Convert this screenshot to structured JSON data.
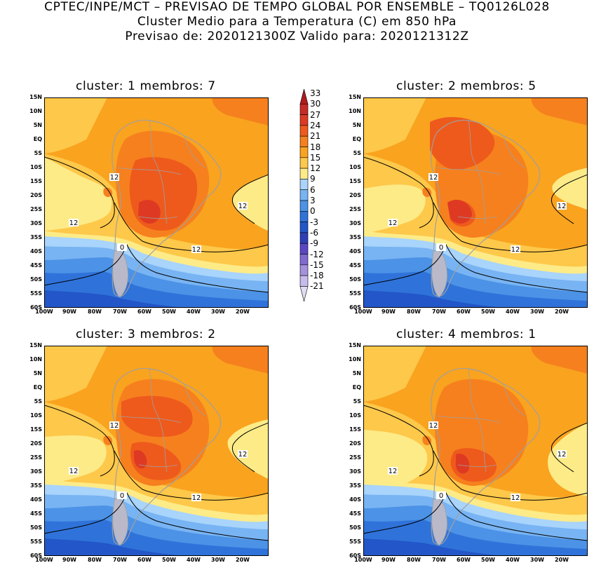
{
  "header": {
    "line1": "CPTEC/INPE/MCT – PREVISAO DE TEMPO GLOBAL POR ENSEMBLE – TQ0126L028",
    "line2": "Cluster Medio para a Temperatura (C) em 850 hPa",
    "line3": "Previsao de: 2020121300Z   Valido para: 2020121312Z"
  },
  "panels": [
    {
      "title": "cluster: 1   membros: 7"
    },
    {
      "title": "cluster: 2   membros: 5"
    },
    {
      "title": "cluster: 3   membros: 2"
    },
    {
      "title": "cluster: 4   membros: 1"
    }
  ],
  "lat_labels": [
    "15N",
    "10N",
    "5N",
    "EQ",
    "5S",
    "10S",
    "15S",
    "20S",
    "25S",
    "30S",
    "35S",
    "40S",
    "45S",
    "50S",
    "55S",
    "60S"
  ],
  "lon_labels": [
    "100W",
    "90W",
    "80W",
    "70W",
    "60W",
    "50W",
    "40W",
    "30W",
    "20W"
  ],
  "contour_labels": {
    "twelve": "12",
    "zero": "0"
  },
  "colorbar": {
    "levels": [
      "33",
      "30",
      "27",
      "24",
      "21",
      "18",
      "15",
      "12",
      "9",
      "6",
      "3",
      "0",
      "-3",
      "-6",
      "-9",
      "-12",
      "-15",
      "-18",
      "-21"
    ],
    "colors": [
      "#b01c1c",
      "#c82a28",
      "#de3a23",
      "#ee5a1c",
      "#f6801e",
      "#f9a31f",
      "#fec84a",
      "#fdeb88",
      "#a9d4fb",
      "#78b4f3",
      "#4c92e6",
      "#2f73da",
      "#2356c8",
      "#2f3fb8",
      "#5a48c2",
      "#7f6ad0",
      "#a592dd",
      "#c6bbea",
      "#e1dcf4"
    ]
  },
  "palette": {
    "t_le_m3": "#2356c8",
    "t_m3_0": "#2f73da",
    "t_0_3": "#4c92e6",
    "t_3_6": "#78b4f3",
    "t_6_9": "#a9d4fb",
    "t_9_12": "#fdeb88",
    "t_12_15": "#fec84a",
    "t_15_18": "#f9a31f",
    "t_18_21": "#f6801e",
    "t_21_24": "#ee5a1c",
    "t_ge_24": "#de3a23",
    "coast": "#a0a0a0",
    "contour": "#000000"
  }
}
